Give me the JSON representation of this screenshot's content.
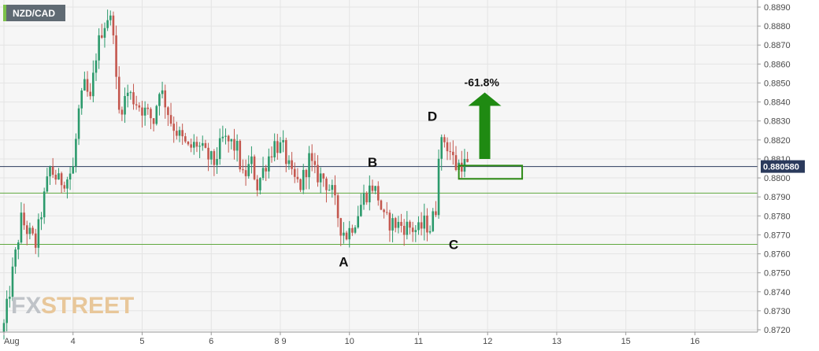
{
  "chart_data": {
    "type": "candlestick",
    "title": "NZD/CAD",
    "current_price": 0.8806,
    "current_price_label": "0.880580",
    "ylim": [
      0.8717,
      0.8893
    ],
    "y_ticks": [
      "0.8890",
      "0.8880",
      "0.8870",
      "0.8860",
      "0.8850",
      "0.8840",
      "0.8830",
      "0.8820",
      "0.8810",
      "0.8800",
      "0.8790",
      "0.8780",
      "0.8770",
      "0.8760",
      "0.8750",
      "0.8740",
      "0.8730",
      "0.8720"
    ],
    "x_ticks": [
      {
        "label": "Aug",
        "bar": 0
      },
      {
        "label": "4",
        "bar": 24
      },
      {
        "label": "5",
        "bar": 48
      },
      {
        "label": "6",
        "bar": 72
      },
      {
        "label": "8 9",
        "bar": 96
      },
      {
        "label": "10",
        "bar": 120
      },
      {
        "label": "11",
        "bar": 144
      },
      {
        "label": "12",
        "bar": 168
      },
      {
        "label": "13",
        "bar": 192
      },
      {
        "label": "15",
        "bar": 216
      },
      {
        "label": "16",
        "bar": 240
      }
    ],
    "horizontal_lines": [
      {
        "value": 0.8792,
        "color": "#5fa83f"
      },
      {
        "value": 0.8765,
        "color": "#5fa83f"
      }
    ],
    "pattern_points": [
      {
        "label": "A",
        "value": 0.87625,
        "bar": 118
      },
      {
        "label": "B",
        "value": 0.88025,
        "bar": 128
      },
      {
        "label": "C",
        "value": 0.87675,
        "bar": 154
      },
      {
        "label": "D",
        "value": 0.8826,
        "bar": 151
      }
    ],
    "target_box": {
      "bar_start": 158,
      "bar_end": 180,
      "low": 0.87995,
      "high": 0.88065,
      "color": "#2e8b16"
    },
    "arrow": {
      "label": "-61.8%",
      "bar": 167,
      "from": 0.881,
      "to": 0.8845,
      "color": "#1f8a12"
    },
    "colors": {
      "up": "#2c9a6c",
      "down": "#c4584f",
      "current_line": "#2b3a5c",
      "title_bg": "#5f6a73"
    },
    "watermark": {
      "part1": "FX",
      "part2": "STREET"
    },
    "anchors": [
      [
        0,
        0.8722
      ],
      [
        3,
        0.875
      ],
      [
        6,
        0.8778
      ],
      [
        9,
        0.877
      ],
      [
        11,
        0.8765
      ],
      [
        13,
        0.8782
      ],
      [
        16,
        0.8805
      ],
      [
        19,
        0.8798
      ],
      [
        22,
        0.88
      ],
      [
        24,
        0.8805
      ],
      [
        26,
        0.8835
      ],
      [
        28,
        0.8848
      ],
      [
        30,
        0.884
      ],
      [
        32,
        0.8865
      ],
      [
        34,
        0.8878
      ],
      [
        36,
        0.8885
      ],
      [
        38,
        0.888
      ],
      [
        39,
        0.885
      ],
      [
        40,
        0.8835
      ],
      [
        43,
        0.8845
      ],
      [
        46,
        0.884
      ],
      [
        49,
        0.8835
      ],
      [
        52,
        0.883
      ],
      [
        54,
        0.8848
      ],
      [
        56,
        0.884
      ],
      [
        58,
        0.883
      ],
      [
        61,
        0.8822
      ],
      [
        64,
        0.8815
      ],
      [
        67,
        0.8818
      ],
      [
        70,
        0.8812
      ],
      [
        73,
        0.8808
      ],
      [
        76,
        0.882
      ],
      [
        79,
        0.8818
      ],
      [
        81,
        0.8815
      ],
      [
        83,
        0.88
      ],
      [
        86,
        0.8808
      ],
      [
        88,
        0.8796
      ],
      [
        91,
        0.8808
      ],
      [
        94,
        0.8818
      ],
      [
        97,
        0.8815
      ],
      [
        100,
        0.88
      ],
      [
        103,
        0.8796
      ],
      [
        106,
        0.881
      ],
      [
        108,
        0.8802
      ],
      [
        111,
        0.88
      ],
      [
        114,
        0.8792
      ],
      [
        117,
        0.8774
      ],
      [
        119,
        0.877
      ],
      [
        122,
        0.8778
      ],
      [
        125,
        0.879
      ],
      [
        128,
        0.8796
      ],
      [
        130,
        0.879
      ],
      [
        132,
        0.8778
      ],
      [
        135,
        0.8776
      ],
      [
        138,
        0.8775
      ],
      [
        141,
        0.8774
      ],
      [
        144,
        0.8772
      ],
      [
        146,
        0.8776
      ],
      [
        148,
        0.8774
      ],
      [
        150,
        0.8784
      ],
      [
        151,
        0.8815
      ],
      [
        153,
        0.882
      ],
      [
        155,
        0.8814
      ],
      [
        157,
        0.8806
      ],
      [
        159,
        0.8808
      ],
      [
        161,
        0.8806
      ]
    ]
  }
}
